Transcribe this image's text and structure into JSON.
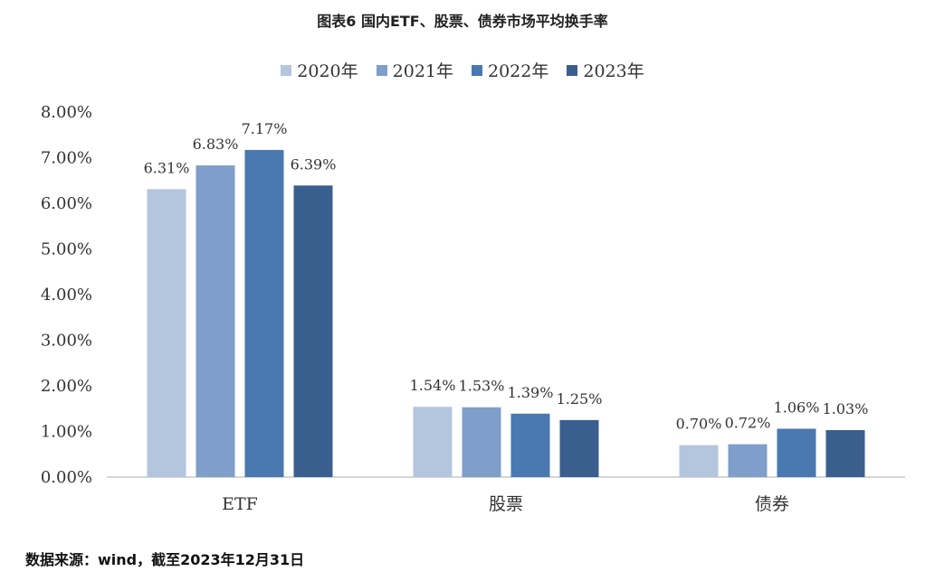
{
  "chart_data": {
    "type": "bar",
    "title": "图表6 国内ETF、股票、债券市场平均换手率",
    "categories": [
      "ETF",
      "股票",
      "债券"
    ],
    "series": [
      {
        "name": "2020年",
        "color": "#b4c5de",
        "values": [
          6.31,
          1.54,
          0.7
        ],
        "labels": [
          "6.31%",
          "1.54%",
          "0.70%"
        ]
      },
      {
        "name": "2021年",
        "color": "#7f9ec9",
        "values": [
          6.83,
          1.53,
          0.72
        ],
        "labels": [
          "6.83%",
          "1.53%",
          "0.72%"
        ]
      },
      {
        "name": "2022年",
        "color": "#4a78b0",
        "values": [
          7.17,
          1.39,
          1.06
        ],
        "labels": [
          "7.17%",
          "1.39%",
          "1.06%"
        ]
      },
      {
        "name": "2023年",
        "color": "#3a5f8f",
        "values": [
          6.39,
          1.25,
          1.03
        ],
        "labels": [
          "6.39%",
          "1.25%",
          "1.03%"
        ]
      }
    ],
    "ylim": [
      0,
      8
    ],
    "yticks": [
      0,
      1,
      2,
      3,
      4,
      5,
      6,
      7,
      8
    ],
    "ytick_labels": [
      "0.00%",
      "1.00%",
      "2.00%",
      "3.00%",
      "4.00%",
      "5.00%",
      "6.00%",
      "7.00%",
      "8.00%"
    ],
    "legend_position": "top-center",
    "grid": false
  },
  "source": "数据来源：wind，截至2023年12月31日"
}
